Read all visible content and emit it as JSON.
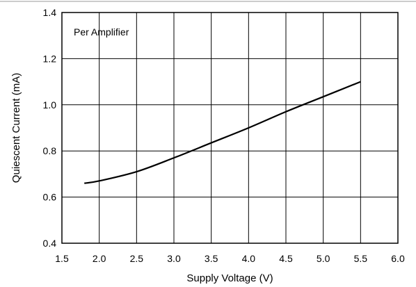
{
  "chart_data": {
    "type": "line",
    "title": "",
    "xlabel": "Supply Voltage (V)",
    "ylabel": "Quiescent Current (mA)",
    "xlim": [
      1.5,
      6.0
    ],
    "ylim": [
      0.4,
      1.4
    ],
    "xticks": [
      1.5,
      2.0,
      2.5,
      3.0,
      3.5,
      4.0,
      4.5,
      5.0,
      5.5,
      6.0
    ],
    "yticks": [
      0.4,
      0.6,
      0.8,
      1.0,
      1.2,
      1.4
    ],
    "xtick_labels": [
      "1.5",
      "2.0",
      "2.5",
      "3.0",
      "3.5",
      "4.0",
      "4.5",
      "5.0",
      "5.5",
      "6.0"
    ],
    "ytick_labels": [
      "0.4",
      "0.6",
      "0.8",
      "1.0",
      "1.2",
      "1.4"
    ],
    "grid": true,
    "annotation": "Per Amplifier",
    "series": [
      {
        "color": "#000000",
        "x": [
          1.8,
          2.0,
          2.5,
          3.0,
          3.5,
          4.0,
          4.5,
          5.0,
          5.5
        ],
        "y": [
          0.66,
          0.67,
          0.71,
          0.77,
          0.835,
          0.9,
          0.97,
          1.035,
          1.1
        ]
      }
    ]
  }
}
